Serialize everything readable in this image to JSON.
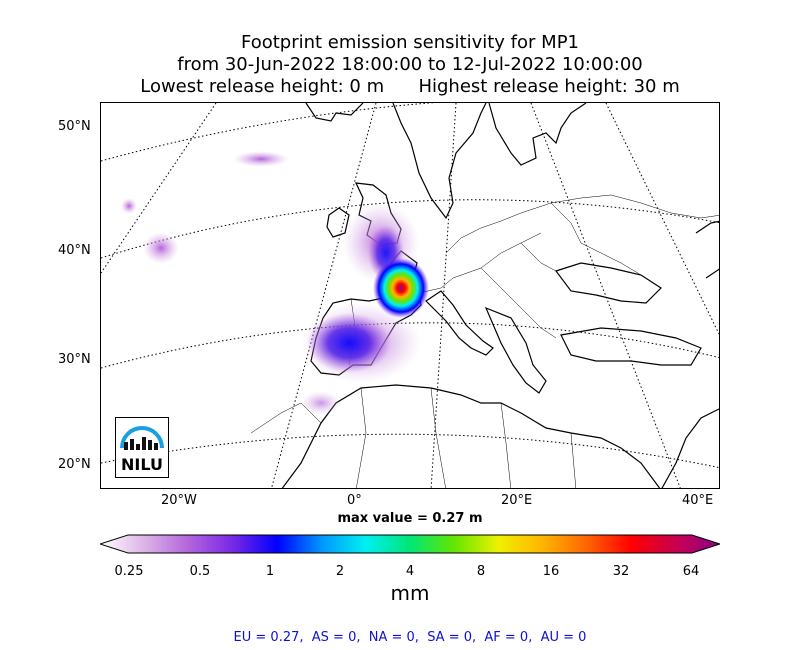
{
  "title": {
    "line1": "Footprint emission sensitivity for MP1",
    "line2": "from 30-Jun-2022 18:00:00 to 12-Jul-2022 10:00:00",
    "line3": "Lowest release height: 0 m      Highest release height: 30 m"
  },
  "map": {
    "lat_labels": [
      "50°N",
      "40°N",
      "30°N",
      "20°N"
    ],
    "lon_labels": [
      "20°W",
      "0°",
      "20°E",
      "40°E"
    ],
    "logo_text": "NILU"
  },
  "max_value": "max value = 0.27 m",
  "colorbar": {
    "ticks": [
      "0.25",
      "0.5",
      "1",
      "2",
      "4",
      "8",
      "16",
      "32",
      "64"
    ],
    "unit": "mm",
    "colors": [
      "#ffffff",
      "#dcb4e6",
      "#b464dc",
      "#7828e6",
      "#0000ff",
      "#0096ff",
      "#00f0f0",
      "#00e678",
      "#64e600",
      "#f0f000",
      "#ffb400",
      "#ff6400",
      "#ff0000",
      "#c80050",
      "#8c008c"
    ]
  },
  "footer": "EU = 0.27,  AS = 0,  NA = 0,  SA = 0,  AF = 0,  AU = 0"
}
